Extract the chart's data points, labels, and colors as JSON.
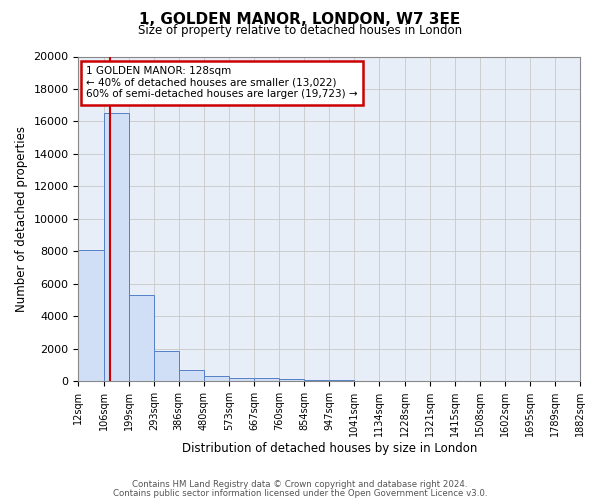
{
  "title": "1, GOLDEN MANOR, LONDON, W7 3EE",
  "subtitle": "Size of property relative to detached houses in London",
  "xlabel": "Distribution of detached houses by size in London",
  "ylabel": "Number of detached properties",
  "bar_values": [
    8100,
    16500,
    5300,
    1850,
    700,
    300,
    200,
    200,
    150,
    100,
    50,
    30,
    20,
    10,
    5,
    3,
    2,
    1,
    1,
    0
  ],
  "bin_edges": [
    12,
    106,
    199,
    293,
    386,
    480,
    573,
    667,
    760,
    854,
    947,
    1041,
    1134,
    1228,
    1321,
    1415,
    1508,
    1602,
    1695,
    1789,
    1882
  ],
  "tick_labels": [
    "12sqm",
    "106sqm",
    "199sqm",
    "293sqm",
    "386sqm",
    "480sqm",
    "573sqm",
    "667sqm",
    "760sqm",
    "854sqm",
    "947sqm",
    "1041sqm",
    "1134sqm",
    "1228sqm",
    "1321sqm",
    "1415sqm",
    "1508sqm",
    "1602sqm",
    "1695sqm",
    "1789sqm",
    "1882sqm"
  ],
  "bar_color": "#d0dff5",
  "bar_edge_color": "#5580c8",
  "grid_color": "#c8c8c8",
  "bg_color": "#e8eef8",
  "property_line_x": 128,
  "annotation_line1": "1 GOLDEN MANOR: 128sqm",
  "annotation_line2": "← 40% of detached houses are smaller (13,022)",
  "annotation_line3": "60% of semi-detached houses are larger (19,723) →",
  "annotation_box_color": "#ffffff",
  "annotation_border_color": "#cc0000",
  "red_line_color": "#cc0000",
  "ylim": [
    0,
    20000
  ],
  "yticks": [
    0,
    2000,
    4000,
    6000,
    8000,
    10000,
    12000,
    14000,
    16000,
    18000,
    20000
  ],
  "footer1": "Contains HM Land Registry data © Crown copyright and database right 2024.",
  "footer2": "Contains public sector information licensed under the Open Government Licence v3.0."
}
